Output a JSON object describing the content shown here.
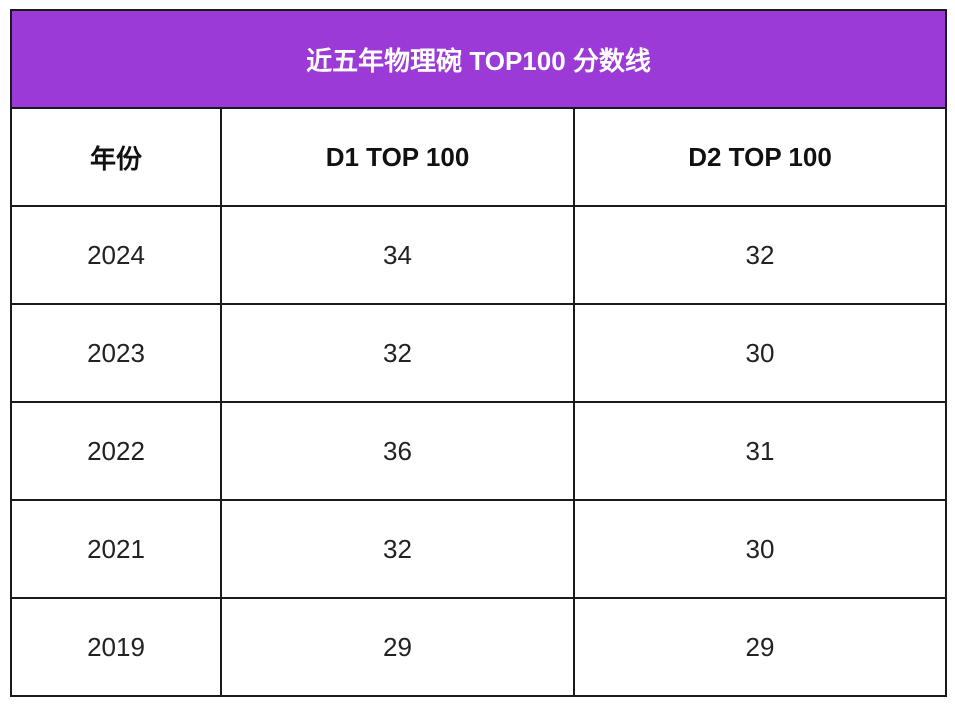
{
  "table": {
    "title": "近五年物理碗 TOP100 分数线",
    "headers": [
      "年份",
      "D1 TOP 100",
      "D2 TOP 100"
    ],
    "rows": [
      {
        "year": "2024",
        "d1": "34",
        "d2": "32"
      },
      {
        "year": "2023",
        "d1": "32",
        "d2": "30"
      },
      {
        "year": "2022",
        "d1": "36",
        "d2": "31"
      },
      {
        "year": "2021",
        "d1": "32",
        "d2": "30"
      },
      {
        "year": "2019",
        "d1": "29",
        "d2": "29"
      }
    ]
  },
  "colors": {
    "title_background": "#9b3ad6",
    "title_text": "#ffffff",
    "border": "#1a1a1a"
  }
}
